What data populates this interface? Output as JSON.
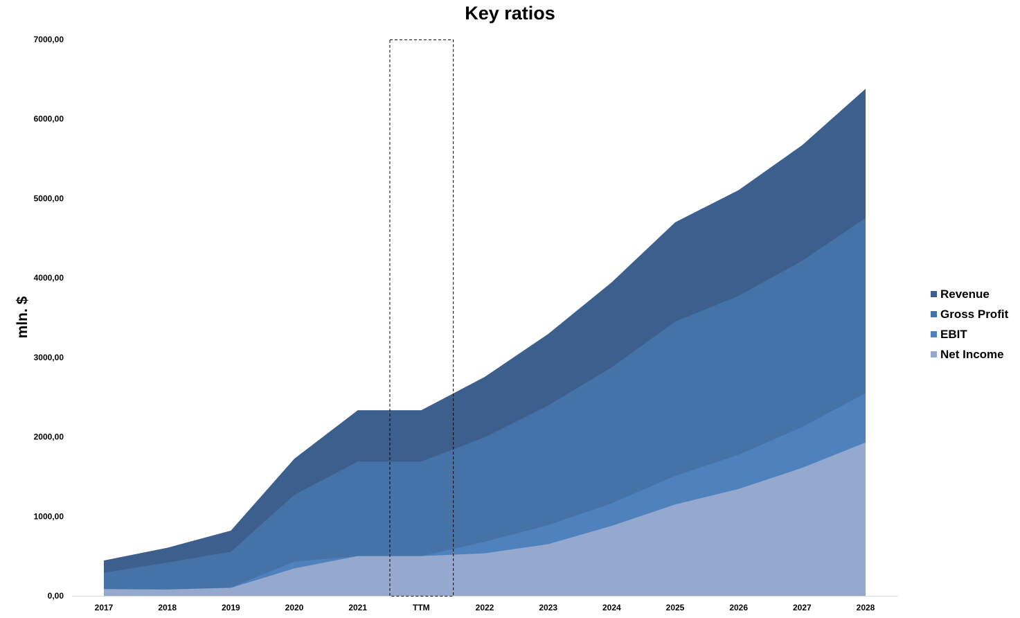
{
  "chart_data": {
    "type": "area",
    "title": "Key ratios",
    "ylabel": "mln. $",
    "xlabel": "",
    "categories": [
      "2017",
      "2018",
      "2019",
      "2020",
      "2021",
      "TTM",
      "2022",
      "2023",
      "2024",
      "2025",
      "2026",
      "2027",
      "2028"
    ],
    "ylim": [
      0,
      7000
    ],
    "yticks": [
      "0,00",
      "1000,00",
      "2000,00",
      "3000,00",
      "4000,00",
      "5000,00",
      "6000,00",
      "7000,00"
    ],
    "ytick_values": [
      0,
      1000,
      2000,
      3000,
      4000,
      5000,
      6000,
      7000
    ],
    "series": [
      {
        "name": "Revenue",
        "color": "#3c5f8d",
        "values": [
          445,
          605,
          820,
          1725,
          2335,
          2335,
          2755,
          3295,
          3945,
          4700,
          5105,
          5670,
          6380
        ]
      },
      {
        "name": "Gross Profit",
        "color": "#4572a7",
        "values": [
          290,
          420,
          555,
          1270,
          1690,
          1690,
          1995,
          2395,
          2875,
          3450,
          3775,
          4215,
          4755
        ]
      },
      {
        "name": "EBIT",
        "color": "#4f81bd",
        "values": [
          85,
          80,
          105,
          430,
          500,
          500,
          680,
          890,
          1165,
          1510,
          1775,
          2125,
          2550
        ]
      },
      {
        "name": "Net Income",
        "color": "#95a9cf",
        "values": [
          85,
          80,
          100,
          345,
          500,
          500,
          535,
          650,
          880,
          1150,
          1345,
          1610,
          1930
        ]
      }
    ],
    "highlight_category": "TTM",
    "grid": false,
    "legend_position": "right"
  }
}
